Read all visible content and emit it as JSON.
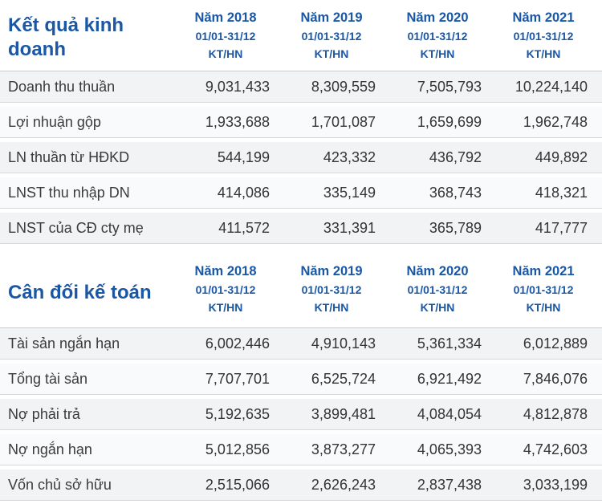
{
  "colors": {
    "accent_blue": "#1a57a5",
    "row_stripe": "#f2f3f5",
    "row_alt": "#f9fafb",
    "divider": "#d7d8da",
    "text": "#333436"
  },
  "tables": [
    {
      "title": "Kết quả kinh doanh",
      "columns": [
        {
          "year": "Năm 2018",
          "period": "01/01-31/12",
          "basis": "KT/HN"
        },
        {
          "year": "Năm 2019",
          "period": "01/01-31/12",
          "basis": "KT/HN"
        },
        {
          "year": "Năm 2020",
          "period": "01/01-31/12",
          "basis": "KT/HN"
        },
        {
          "year": "Năm 2021",
          "period": "01/01-31/12",
          "basis": "KT/HN"
        }
      ],
      "rows": [
        {
          "label": "Doanh thu thuần",
          "values": [
            "9,031,433",
            "8,309,559",
            "7,505,793",
            "10,224,140"
          ]
        },
        {
          "label": "Lợi nhuận gộp",
          "values": [
            "1,933,688",
            "1,701,087",
            "1,659,699",
            "1,962,748"
          ]
        },
        {
          "label": "LN thuần từ HĐKD",
          "values": [
            "544,199",
            "423,332",
            "436,792",
            "449,892"
          ]
        },
        {
          "label": "LNST thu nhập DN",
          "values": [
            "414,086",
            "335,149",
            "368,743",
            "418,321"
          ]
        },
        {
          "label": "LNST của CĐ cty mẹ",
          "values": [
            "411,572",
            "331,391",
            "365,789",
            "417,777"
          ]
        }
      ]
    },
    {
      "title": "Cân đối kế toán",
      "columns": [
        {
          "year": "Năm 2018",
          "period": "01/01-31/12",
          "basis": "KT/HN"
        },
        {
          "year": "Năm 2019",
          "period": "01/01-31/12",
          "basis": "KT/HN"
        },
        {
          "year": "Năm 2020",
          "period": "01/01-31/12",
          "basis": "KT/HN"
        },
        {
          "year": "Năm 2021",
          "period": "01/01-31/12",
          "basis": "KT/HN"
        }
      ],
      "rows": [
        {
          "label": "Tài sản ngắn hạn",
          "values": [
            "6,002,446",
            "4,910,143",
            "5,361,334",
            "6,012,889"
          ]
        },
        {
          "label": "Tổng tài sản",
          "values": [
            "7,707,701",
            "6,525,724",
            "6,921,492",
            "7,846,076"
          ]
        },
        {
          "label": "Nợ phải trả",
          "values": [
            "5,192,635",
            "3,899,481",
            "4,084,054",
            "4,812,878"
          ]
        },
        {
          "label": "Nợ ngắn hạn",
          "values": [
            "5,012,856",
            "3,873,277",
            "4,065,393",
            "4,742,603"
          ]
        },
        {
          "label": "Vốn chủ sở hữu",
          "values": [
            "2,515,066",
            "2,626,243",
            "2,837,438",
            "3,033,199"
          ]
        }
      ]
    }
  ],
  "chart_data": [
    {
      "type": "table",
      "title": "Kết quả kinh doanh",
      "categories": [
        "Năm 2018",
        "Năm 2019",
        "Năm 2020",
        "Năm 2021"
      ],
      "column_period": "01/01-31/12",
      "column_basis": "KT/HN",
      "series": [
        {
          "name": "Doanh thu thuần",
          "values": [
            9031433,
            8309559,
            7505793,
            10224140
          ]
        },
        {
          "name": "Lợi nhuận gộp",
          "values": [
            1933688,
            1701087,
            1659699,
            1962748
          ]
        },
        {
          "name": "LN thuần từ HĐKD",
          "values": [
            544199,
            423332,
            436792,
            449892
          ]
        },
        {
          "name": "LNST thu nhập DN",
          "values": [
            414086,
            335149,
            368743,
            418321
          ]
        },
        {
          "name": "LNST của CĐ cty mẹ",
          "values": [
            411572,
            331391,
            365789,
            417777
          ]
        }
      ]
    },
    {
      "type": "table",
      "title": "Cân đối kế toán",
      "categories": [
        "Năm 2018",
        "Năm 2019",
        "Năm 2020",
        "Năm 2021"
      ],
      "column_period": "01/01-31/12",
      "column_basis": "KT/HN",
      "series": [
        {
          "name": "Tài sản ngắn hạn",
          "values": [
            6002446,
            4910143,
            5361334,
            6012889
          ]
        },
        {
          "name": "Tổng tài sản",
          "values": [
            7707701,
            6525724,
            6921492,
            7846076
          ]
        },
        {
          "name": "Nợ phải trả",
          "values": [
            5192635,
            3899481,
            4084054,
            4812878
          ]
        },
        {
          "name": "Nợ ngắn hạn",
          "values": [
            5012856,
            3873277,
            4065393,
            4742603
          ]
        },
        {
          "name": "Vốn chủ sở hữu",
          "values": [
            2515066,
            2626243,
            2837438,
            3033199
          ]
        }
      ]
    }
  ]
}
